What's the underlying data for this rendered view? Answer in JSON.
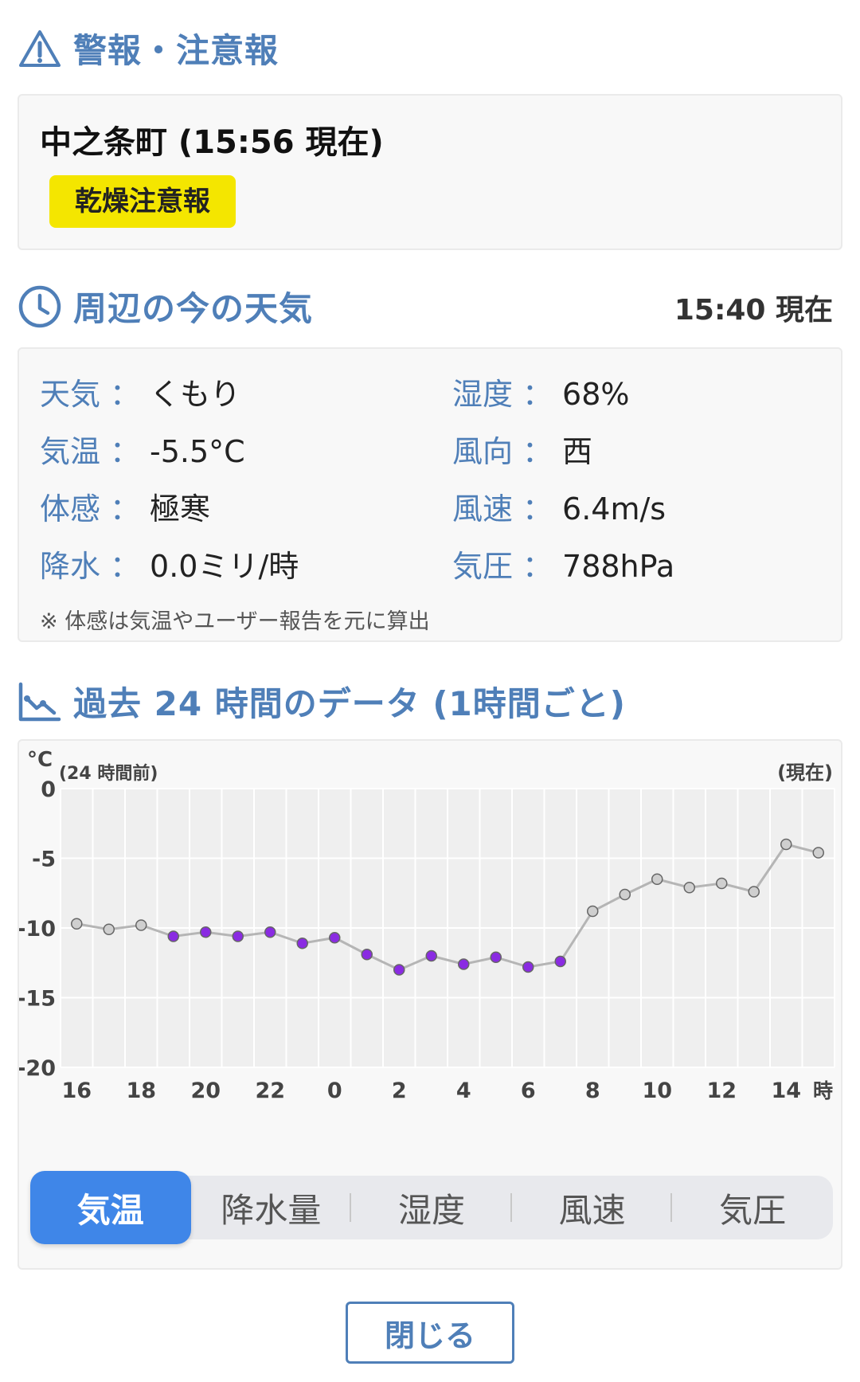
{
  "alerts": {
    "title": "警報・注意報",
    "place_time": "中之条町 (15:56 現在)",
    "badge": "乾燥注意報"
  },
  "current": {
    "title": "周辺の今の天気",
    "time": "15:40 現在",
    "items": [
      {
        "label": "天気",
        "sep": "：",
        "value": "くもり"
      },
      {
        "label": "湿度",
        "sep": "：",
        "value": "68%"
      },
      {
        "label": "気温",
        "sep": "：",
        "value": "-5.5°C"
      },
      {
        "label": "風向",
        "sep": "：",
        "value": "西"
      },
      {
        "label": "体感",
        "sep": "：",
        "value": "極寒"
      },
      {
        "label": "風速",
        "sep": "：",
        "value": "6.4m/s"
      },
      {
        "label": "降水",
        "sep": "：",
        "value": "0.0ミリ/時"
      },
      {
        "label": "気圧",
        "sep": "：",
        "value": "788hPa"
      }
    ],
    "note": "※ 体感は気温やユーザー報告を元に算出"
  },
  "history": {
    "title": "過去 24 時間のデータ (1時間ごと)",
    "tabs": [
      "気温",
      "降水量",
      "湿度",
      "風速",
      "気圧"
    ],
    "active_tab": 0
  },
  "chart_data": {
    "type": "line",
    "unit_label": "°C",
    "left_note": "(24 時間前)",
    "right_note": "(現在)",
    "x": [
      16,
      17,
      18,
      19,
      20,
      21,
      22,
      23,
      0,
      1,
      2,
      3,
      4,
      5,
      6,
      7,
      8,
      9,
      10,
      11,
      12,
      13,
      14,
      15
    ],
    "x_tick_labels": [
      "16",
      "18",
      "20",
      "22",
      "0",
      "2",
      "4",
      "6",
      "8",
      "10",
      "12",
      "14"
    ],
    "x_unit": "時",
    "y_ticks": [
      0,
      -5,
      -10,
      -15,
      -20
    ],
    "ylim": [
      -20,
      0
    ],
    "values": [
      -9.7,
      -10.1,
      -9.8,
      -10.6,
      -10.3,
      -10.6,
      -10.3,
      -11.1,
      -10.7,
      -11.9,
      -13.0,
      -12.0,
      -12.6,
      -12.1,
      -12.8,
      -12.4,
      -8.8,
      -7.6,
      -6.5,
      -7.1,
      -6.8,
      -7.4,
      -4.0,
      -4.6
    ],
    "point_colors": [
      "#cfcfcf",
      "#cfcfcf",
      "#cfcfcf",
      "#8a2be2",
      "#8a2be2",
      "#8a2be2",
      "#8a2be2",
      "#8a2be2",
      "#8a2be2",
      "#8a2be2",
      "#8a2be2",
      "#8a2be2",
      "#8a2be2",
      "#8a2be2",
      "#8a2be2",
      "#8a2be2",
      "#cfcfcf",
      "#cfcfcf",
      "#cfcfcf",
      "#cfcfcf",
      "#cfcfcf",
      "#cfcfcf",
      "#cfcfcf",
      "#cfcfcf"
    ],
    "grid": true
  },
  "close_label": "閉じる",
  "colors": {
    "accent": "#4f7fb8",
    "badge": "#f4e600",
    "active_tab": "#3f86e8",
    "below_threshold": "#8a2be2"
  }
}
